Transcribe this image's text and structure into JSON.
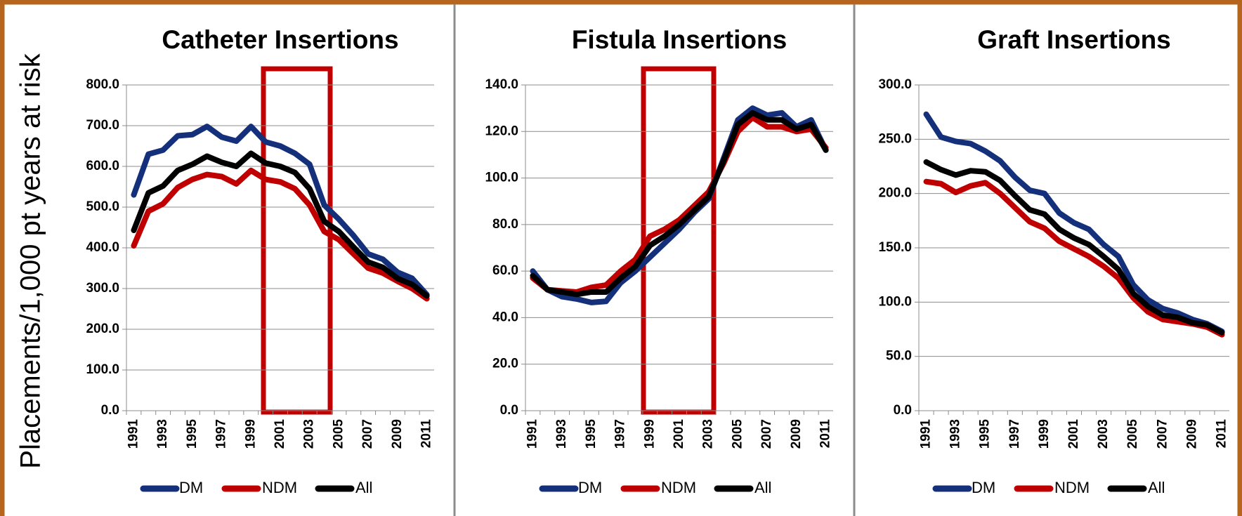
{
  "chart_data": [
    {
      "type": "line",
      "title": "Catheter Insertions",
      "ylabel": "Placements/1,000 pt years at risk",
      "categories": [
        "1991",
        null,
        "1993",
        null,
        "1995",
        null,
        "1997",
        null,
        "1999",
        null,
        "2001",
        null,
        "2003",
        null,
        "2005",
        null,
        "2007",
        null,
        "2009",
        null,
        "2011"
      ],
      "series": [
        {
          "name": "DM",
          "color": "#14307a",
          "values": [
            530,
            630,
            640,
            675,
            678,
            698,
            672,
            662,
            698,
            660,
            650,
            632,
            605,
            505,
            470,
            430,
            385,
            372,
            340,
            325,
            285
          ]
        },
        {
          "name": "NDM",
          "color": "#c00000",
          "values": [
            405,
            490,
            508,
            548,
            568,
            580,
            575,
            557,
            590,
            568,
            562,
            545,
            505,
            440,
            420,
            385,
            350,
            338,
            318,
            300,
            275
          ]
        },
        {
          "name": "All",
          "color": "#000000",
          "values": [
            443,
            535,
            552,
            590,
            605,
            625,
            610,
            600,
            632,
            608,
            600,
            585,
            545,
            465,
            440,
            402,
            365,
            352,
            325,
            310,
            282
          ]
        }
      ],
      "ylim": [
        0,
        800
      ],
      "yticks": [
        {
          "value": 0,
          "label": "0.0"
        },
        {
          "value": 100,
          "label": "100.0"
        },
        {
          "value": 200,
          "label": "200.0"
        },
        {
          "value": 300,
          "label": "300.0"
        },
        {
          "value": 400,
          "label": "400.0"
        },
        {
          "value": 500,
          "label": "500.0"
        },
        {
          "value": 600,
          "label": "600.0"
        },
        {
          "value": 700,
          "label": "700.0"
        },
        {
          "value": 800,
          "label": "800.0"
        }
      ],
      "grid": true,
      "legend": "bottom"
    },
    {
      "type": "line",
      "title": "Fistula Insertions",
      "categories": [
        "1991",
        null,
        "1993",
        null,
        "1995",
        null,
        "1997",
        null,
        "1999",
        null,
        "2001",
        null,
        "2003",
        null,
        "2005",
        null,
        "2007",
        null,
        "2009",
        null,
        "2011"
      ],
      "series": [
        {
          "name": "DM",
          "color": "#14307a",
          "values": [
            60,
            52,
            49,
            48,
            46.5,
            47,
            55,
            60,
            66,
            72,
            78,
            85,
            91,
            108,
            125,
            130,
            127,
            128,
            122,
            125,
            112
          ]
        },
        {
          "name": "NDM",
          "color": "#c00000",
          "values": [
            57,
            52,
            51.5,
            51,
            53,
            54,
            60,
            65,
            75,
            78,
            82,
            88,
            94,
            106,
            120,
            126,
            122,
            122,
            120,
            121,
            113
          ]
        },
        {
          "name": "All",
          "color": "#000000",
          "values": [
            58,
            52,
            51,
            50,
            51,
            51,
            57,
            62,
            71,
            75,
            80,
            86,
            92,
            107,
            123,
            128,
            125,
            125,
            121,
            123,
            112
          ]
        }
      ],
      "ylim": [
        0,
        140
      ],
      "yticks": [
        {
          "value": 0,
          "label": "0.0"
        },
        {
          "value": 20,
          "label": "20.0"
        },
        {
          "value": 40,
          "label": "40.0"
        },
        {
          "value": 60,
          "label": "60.0"
        },
        {
          "value": 80,
          "label": "80.0"
        },
        {
          "value": 100,
          "label": "100.0"
        },
        {
          "value": 120,
          "label": "120.0"
        },
        {
          "value": 140,
          "label": "140.0"
        }
      ],
      "grid": true,
      "legend": "bottom"
    },
    {
      "type": "line",
      "title": "Graft Insertions",
      "categories": [
        "1991",
        null,
        "1993",
        null,
        "1995",
        null,
        "1997",
        null,
        "1999",
        null,
        "2001",
        null,
        "2003",
        null,
        "2005",
        null,
        "2007",
        null,
        "2009",
        null,
        "2011"
      ],
      "series": [
        {
          "name": "DM",
          "color": "#14307a",
          "values": [
            273,
            252,
            248,
            246,
            239,
            230,
            215,
            203,
            200,
            182,
            173,
            167,
            153,
            142,
            116,
            102,
            94,
            90,
            84,
            80,
            73
          ]
        },
        {
          "name": "NDM",
          "color": "#c00000",
          "values": [
            211,
            209,
            201,
            207,
            210,
            200,
            187,
            174,
            168,
            156,
            149,
            142,
            133,
            122,
            104,
            91,
            84,
            82,
            80,
            77,
            70
          ]
        },
        {
          "name": "All",
          "color": "#000000",
          "values": [
            229,
            222,
            217,
            221,
            220,
            212,
            198,
            185,
            181,
            167,
            159,
            153,
            142,
            130,
            108,
            96,
            88,
            86,
            81,
            79,
            72
          ]
        }
      ],
      "ylim": [
        0,
        300
      ],
      "yticks": [
        {
          "value": 0,
          "label": "0.0"
        },
        {
          "value": 50,
          "label": "50.0"
        },
        {
          "value": 100,
          "label": "100.0"
        },
        {
          "value": 150,
          "label": "150.0"
        },
        {
          "value": 200,
          "label": "200.0"
        },
        {
          "value": 250,
          "label": "250.0"
        },
        {
          "value": 300,
          "label": "300.0"
        }
      ],
      "grid": true,
      "legend": "bottom"
    }
  ]
}
